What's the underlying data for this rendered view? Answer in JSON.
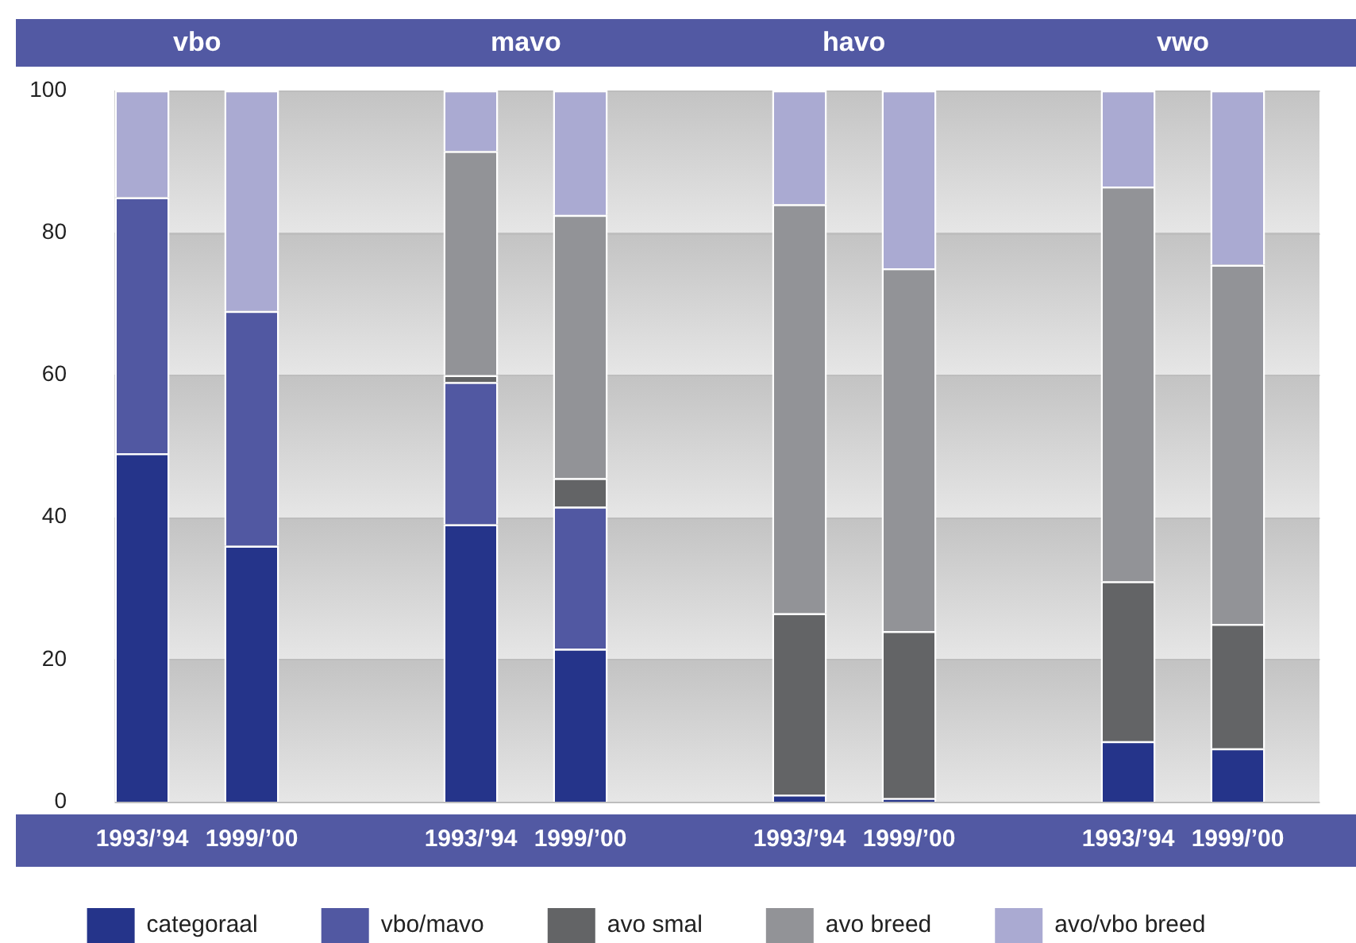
{
  "chart_data": {
    "type": "bar",
    "stacked": true,
    "categories": [
      "1993/’94",
      "1999/’00",
      null,
      "1993/’94",
      "1999/’00",
      null,
      "1993/’94",
      "1999/’00",
      null,
      "1993/’94",
      "1999/’00"
    ],
    "series": [
      {
        "name": "categoraal",
        "color": "#25348a",
        "values": [
          49,
          36,
          null,
          39,
          21.5,
          null,
          1,
          0.5,
          null,
          8.5,
          7.5
        ]
      },
      {
        "name": "vbo/mavo",
        "color": "#5158a2",
        "values": [
          36,
          33,
          null,
          20,
          20,
          null,
          null,
          null,
          null,
          null,
          null
        ]
      },
      {
        "name": "avo smal",
        "color": "#636466",
        "values": [
          null,
          null,
          null,
          1,
          4,
          null,
          25.5,
          23.5,
          null,
          22.5,
          17.5
        ]
      },
      {
        "name": "avo breed",
        "color": "#929397",
        "values": [
          null,
          null,
          null,
          31.5,
          37,
          null,
          57.5,
          51,
          null,
          55.5,
          50.5
        ]
      },
      {
        "name": "avo/vbo breed",
        "color": "#aaaad2",
        "values": [
          15,
          31,
          null,
          8.5,
          17.5,
          null,
          16,
          25,
          null,
          13.5,
          24.5
        ]
      }
    ],
    "ylim": [
      0,
      100
    ],
    "yticks": [
      0,
      20,
      40,
      60,
      80,
      100
    ],
    "grid": "y",
    "legend": "bottom",
    "annotations": [
      "vbo",
      "mavo",
      "havo",
      "vwo"
    ]
  }
}
